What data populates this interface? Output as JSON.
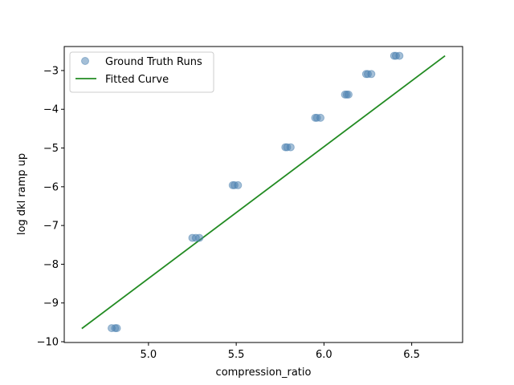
{
  "chart_data": {
    "type": "scatter",
    "xlabel": "compression_ratio",
    "ylabel": "log dkl ramp up",
    "xlim": [
      4.52,
      6.79
    ],
    "ylim": [
      -10.02,
      -2.38
    ],
    "xticks": [
      5.0,
      5.5,
      6.0,
      6.5
    ],
    "xtick_labels": [
      "5.0",
      "5.5",
      "6.0",
      "6.5"
    ],
    "yticks": [
      -10,
      -9,
      -8,
      -7,
      -6,
      -5,
      -4,
      -3
    ],
    "ytick_labels": [
      "−10",
      "−9",
      "−8",
      "−7",
      "−6",
      "−5",
      "−4",
      "−3"
    ],
    "grid": false,
    "legend_position": "top-left",
    "series": [
      {
        "name": "Ground Truth Runs",
        "kind": "scatter",
        "color": "#4a7fb0",
        "points": [
          [
            4.79,
            -9.65
          ],
          [
            4.81,
            -9.65
          ],
          [
            4.82,
            -9.65
          ],
          [
            5.25,
            -7.32
          ],
          [
            5.27,
            -7.32
          ],
          [
            5.29,
            -7.32
          ],
          [
            5.48,
            -5.96
          ],
          [
            5.49,
            -5.96
          ],
          [
            5.51,
            -5.96
          ],
          [
            5.78,
            -4.98
          ],
          [
            5.79,
            -4.98
          ],
          [
            5.81,
            -4.98
          ],
          [
            5.95,
            -4.22
          ],
          [
            5.96,
            -4.22
          ],
          [
            5.98,
            -4.22
          ],
          [
            6.12,
            -3.62
          ],
          [
            6.13,
            -3.62
          ],
          [
            6.14,
            -3.62
          ],
          [
            6.24,
            -3.09
          ],
          [
            6.25,
            -3.09
          ],
          [
            6.27,
            -3.09
          ],
          [
            6.4,
            -2.62
          ],
          [
            6.41,
            -2.62
          ],
          [
            6.43,
            -2.62
          ]
        ]
      },
      {
        "name": "Fitted Curve",
        "kind": "line",
        "color": "#228b22",
        "points": [
          [
            4.62,
            -9.66
          ],
          [
            6.69,
            -2.62
          ]
        ]
      }
    ]
  }
}
